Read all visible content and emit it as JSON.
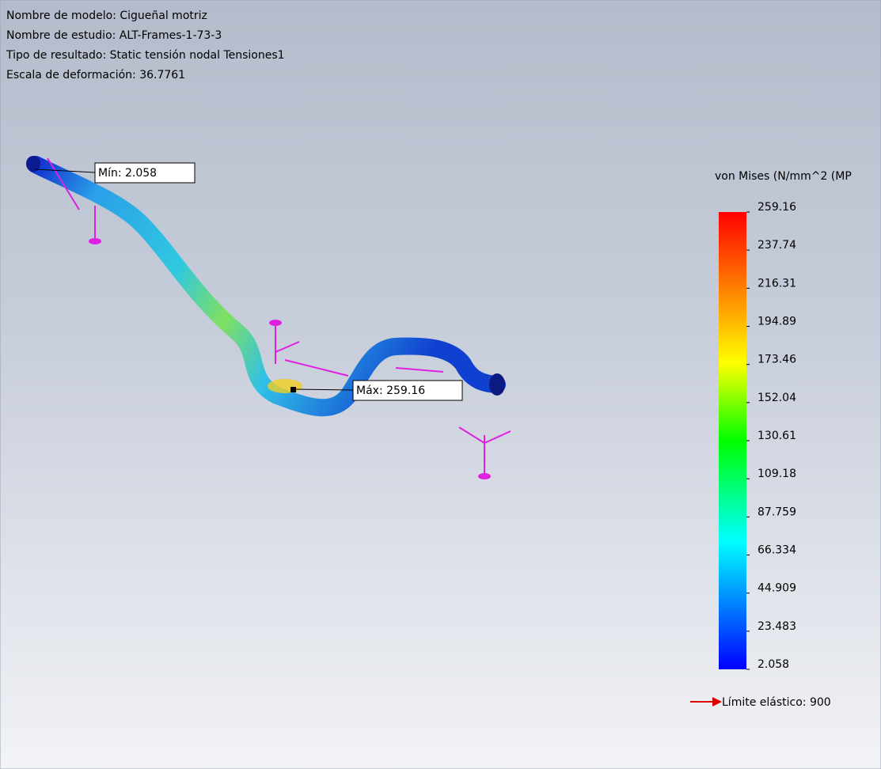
{
  "info": [
    "Nombre de modelo: Cigueñal motriz",
    "Nombre de estudio: ALT-Frames-1-73-3",
    "Tipo de resultado: Static tensión nodal Tensiones1",
    "Escala de deformación: 36.7761"
  ],
  "probes": {
    "min": "Mín: 2.058",
    "max": "Máx: 259.16"
  },
  "legend": {
    "title": "von Mises (N/mm^2 (MP",
    "ticks": [
      "259.16",
      "237.74",
      "216.31",
      "194.89",
      "173.46",
      "152.04",
      "130.61",
      "109.18",
      "87.759",
      "66.334",
      "44.909",
      "23.483",
      "2.058"
    ],
    "yield": "Límite elástico: 900"
  }
}
